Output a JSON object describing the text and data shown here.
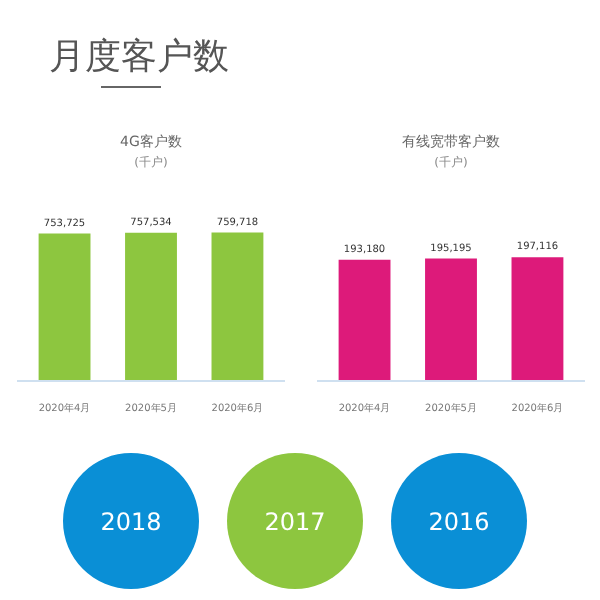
{
  "chart_data": [
    {
      "type": "other",
      "title": "月度客户数"
    },
    {
      "type": "bar",
      "title": "4G客户数",
      "subtitle": "(千户)",
      "categories": [
        "2020年4月",
        "2020年5月",
        "2020年6月"
      ],
      "values": [
        753725,
        757534,
        759718
      ],
      "color": "#8dc63f",
      "data_labels": true,
      "value_labels": [
        "753,725",
        "757,534",
        "759,718"
      ]
    },
    {
      "type": "bar",
      "title": "有线宽带客户数",
      "subtitle": "(千户)",
      "categories": [
        "2020年4月",
        "2020年5月",
        "2020年6月"
      ],
      "values": [
        193180,
        195195,
        197116
      ],
      "color": "#dd1a7a",
      "data_labels": true,
      "value_labels": [
        "193,180",
        "195,195",
        "197,116"
      ]
    },
    {
      "type": "other",
      "annotations": [
        "2018",
        "2017",
        "2016"
      ]
    }
  ]
}
